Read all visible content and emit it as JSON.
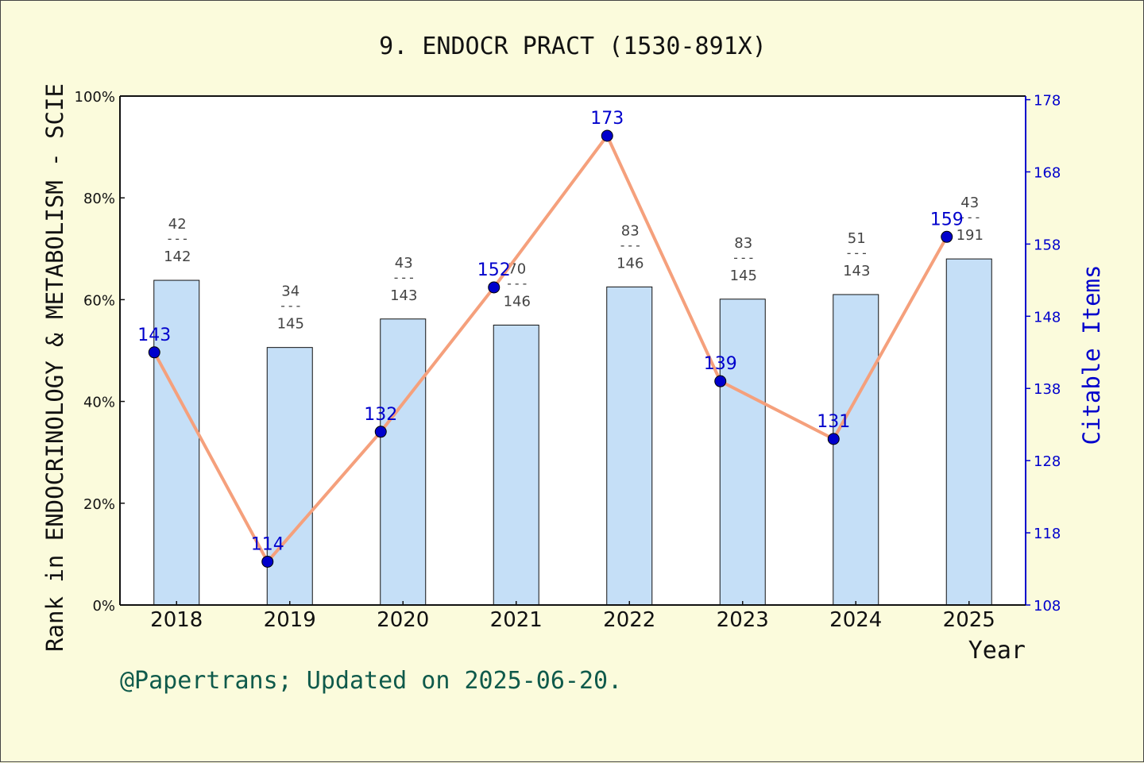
{
  "chart_data": {
    "type": "bar",
    "title": "9. ENDOCR PRACT (1530-891X)",
    "xlabel": "Year",
    "ylabel": "Rank in ENDOCRINOLOGY & METABOLISM - SCIE",
    "y2label": "Citable Items",
    "footer": "@Papertrans; Updated on 2025-06-20.",
    "categories": [
      "2018",
      "2019",
      "2020",
      "2021",
      "2022",
      "2023",
      "2024",
      "2025"
    ],
    "ylim": [
      0,
      100
    ],
    "y_ticks": [
      "0%",
      "20%",
      "40%",
      "60%",
      "80%",
      "100%"
    ],
    "y2lim": [
      108,
      178.5
    ],
    "y2_ticks": [
      "108",
      "118",
      "128",
      "138",
      "148",
      "158",
      "168",
      "178"
    ],
    "series": [
      {
        "kind": "bar",
        "values": [
          63.8,
          50.6,
          56.2,
          55.0,
          62.5,
          60.1,
          61.0,
          68.0
        ],
        "rank": [
          "42",
          "34",
          "43",
          "70",
          "83",
          "83",
          "51",
          "43"
        ],
        "total": [
          "142",
          "145",
          "143",
          "146",
          "146",
          "145",
          "143",
          "191"
        ],
        "color": "#c5dff7"
      },
      {
        "kind": "line",
        "axis": "right",
        "values": [
          143,
          114,
          132,
          152,
          173,
          139,
          131,
          159
        ],
        "color": "#f5a07c",
        "marker_color": "#0000cc"
      }
    ],
    "colors": {
      "background": "#fbfbdc",
      "label_blue": "#0000cc",
      "footer_green": "#0f5a4b"
    }
  }
}
